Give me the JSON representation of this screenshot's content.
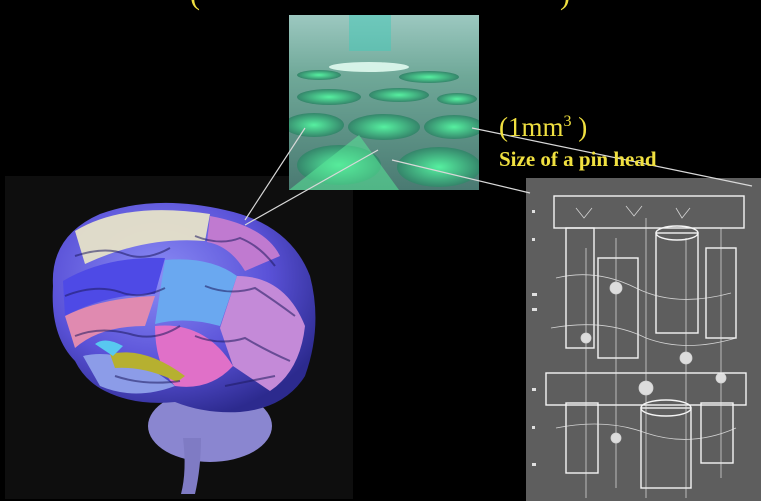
{
  "top_fragment": {
    "left": "(",
    "right": ")"
  },
  "volume": {
    "open": "(",
    "value": "1mm",
    "exponent": "3",
    "close": " )"
  },
  "caption": "Size of a pin head",
  "colors": {
    "background": "#000000",
    "label_yellow": "#f0e040",
    "connector_line": "#d8d8d8",
    "column_green": "#3fe08a",
    "diagram_gray": "#5e5e5e"
  }
}
